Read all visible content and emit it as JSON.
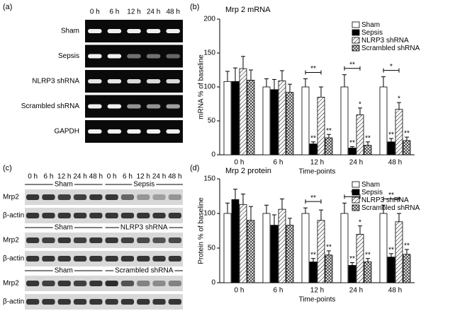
{
  "chart_data": [
    {
      "type": "bar",
      "panel": "(b)",
      "title": "Mrp 2 mRNA",
      "y_label": "mRNA % of baseline",
      "x_label": "Time-points",
      "categories": [
        "0 h",
        "6 h",
        "12 h",
        "24 h",
        "48 h"
      ],
      "ylim": [
        0,
        200
      ],
      "yticks": [
        0,
        50,
        100,
        150,
        200
      ],
      "legend": "top-right",
      "series": [
        {
          "name": "Sham",
          "color": "#ffffff",
          "pattern": "none",
          "values": [
            108,
            100,
            100,
            100,
            100
          ],
          "errors": [
            15,
            12,
            12,
            18,
            15
          ],
          "marks": [
            null,
            null,
            null,
            null,
            null
          ]
        },
        {
          "name": "Sepsis",
          "color": "#000000",
          "pattern": "none",
          "values": [
            108,
            96,
            16,
            10,
            19
          ],
          "errors": [
            20,
            15,
            3,
            2,
            5
          ],
          "marks": [
            null,
            null,
            "**",
            "**",
            "**"
          ]
        },
        {
          "name": "NLRP3 shRNA",
          "color": "#ffffff",
          "pattern": "hatch",
          "values": [
            127,
            109,
            85,
            59,
            67
          ],
          "errors": [
            18,
            15,
            15,
            10,
            10
          ],
          "marks": [
            null,
            null,
            null,
            "*",
            "*"
          ]
        },
        {
          "name": "Scrambled shRNA",
          "color": "#333333",
          "pattern": "crosshatch",
          "values": [
            110,
            92,
            25,
            14,
            21
          ],
          "errors": [
            15,
            12,
            5,
            5,
            5
          ],
          "marks": [
            null,
            null,
            "**",
            "**",
            "**"
          ]
        }
      ],
      "bracket_marks": [
        null,
        null,
        "**",
        "**",
        "*"
      ]
    },
    {
      "type": "bar",
      "panel": "(d)",
      "title": "Mrp 2 protein",
      "y_label": "Protein % of baseline",
      "x_label": "Time-points",
      "categories": [
        "0 h",
        "6 h",
        "12 h",
        "24 h",
        "48 h"
      ],
      "ylim": [
        0,
        150
      ],
      "yticks": [
        0,
        50,
        100,
        150
      ],
      "legend": "top-right",
      "series": [
        {
          "name": "Sham",
          "color": "#ffffff",
          "pattern": "none",
          "values": [
            100,
            100,
            100,
            100,
            100
          ],
          "errors": [
            15,
            12,
            8,
            15,
            12
          ],
          "marks": [
            null,
            null,
            null,
            null,
            null
          ]
        },
        {
          "name": "Sepsis",
          "color": "#000000",
          "pattern": "none",
          "values": [
            120,
            83,
            30,
            25,
            37
          ],
          "errors": [
            15,
            15,
            5,
            4,
            5
          ],
          "marks": [
            null,
            null,
            "**",
            "**",
            "**"
          ]
        },
        {
          "name": "NLRP3 shRNA",
          "color": "#ffffff",
          "pattern": "hatch",
          "values": [
            113,
            106,
            90,
            70,
            88
          ],
          "errors": [
            15,
            15,
            15,
            12,
            12
          ],
          "marks": [
            null,
            null,
            null,
            "*",
            null
          ]
        },
        {
          "name": "Scrambled shRNA",
          "color": "#333333",
          "pattern": "crosshatch",
          "values": [
            90,
            83,
            40,
            30,
            41
          ],
          "errors": [
            20,
            10,
            6,
            5,
            7
          ],
          "marks": [
            null,
            null,
            "**",
            "**",
            "**"
          ]
        }
      ],
      "bracket_marks": [
        null,
        null,
        "**",
        "*",
        "**"
      ]
    }
  ],
  "panel_a": {
    "label": "(a)",
    "lanes": [
      "0 h",
      "6 h",
      "12 h",
      "24 h",
      "48 h"
    ],
    "rows": [
      "Sham",
      "Sepsis",
      "NLRP3 shRNA",
      "Scrambled shRNA",
      "GAPDH"
    ]
  },
  "panel_c": {
    "label": "(c)",
    "lanes": [
      "0 h",
      "6 h",
      "12 h",
      "24 h",
      "48 h"
    ],
    "rows": [
      "Mrp2",
      "β-actin"
    ],
    "blocks": [
      {
        "left": "Sham",
        "right": "Sepsis"
      },
      {
        "left": "Sham",
        "right": "NLRP3 shRNA"
      },
      {
        "left": "Sham",
        "right": "Scrambled shRNA"
      }
    ]
  }
}
